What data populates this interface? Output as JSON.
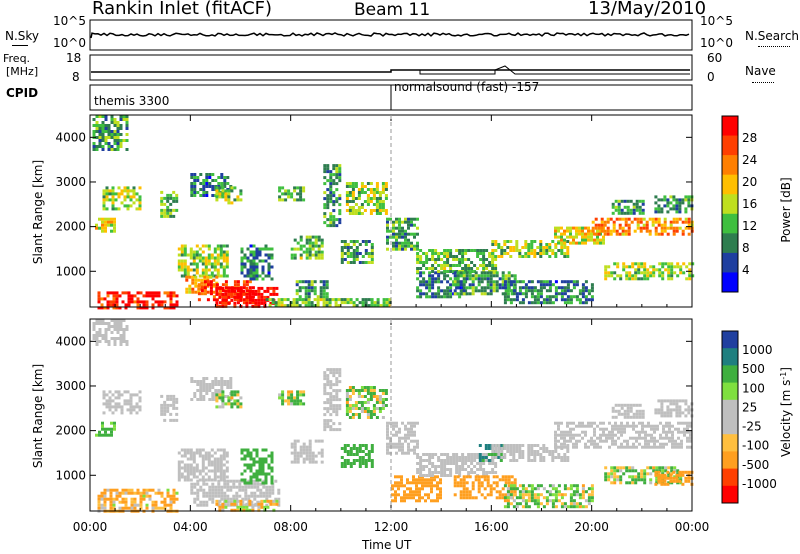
{
  "header": {
    "station": "Rankin Inlet (fitACF)",
    "beam": "Beam 11",
    "date": "13/May/2010"
  },
  "summary": {
    "nsky_label": "N.Sky",
    "nsky_tick_top": "10^5",
    "nsky_tick_bottom": "10^0",
    "nsearch_label": "N.Search",
    "nsearch_tick_top": "10^5",
    "nsearch_tick_bottom": "10^0",
    "freq_label_1": "Freq.",
    "freq_label_2": "[MHz]",
    "freq_tick_top": "18",
    "freq_tick_bottom": "8",
    "nave_label": "Nave",
    "nave_tick_top": "60",
    "nave_tick_bottom": "0",
    "cpid_label": "CPID",
    "programs": [
      {
        "name": "themis 3300",
        "start_hour": 0.0
      },
      {
        "name": "normalsound (fast) -157",
        "start_hour": 12.0
      }
    ]
  },
  "colors": {
    "power_scale": [
      "#0000ff",
      "#1f3f9f",
      "#2e7d4f",
      "#3fbf3f",
      "#bfdf1f",
      "#ffbf00",
      "#ff7f00",
      "#ff3f00",
      "#ff0000"
    ],
    "velocity_scale": [
      "#ff0000",
      "#ff4000",
      "#ff9f1f",
      "#ffbf3f",
      "#bfbfbf",
      "#bfbfbf",
      "#7fdf3f",
      "#3faf3f",
      "#1f7f7f",
      "#1f3f9f"
    ]
  },
  "chart_data": [
    {
      "type": "heatmap",
      "panel": "power",
      "xlabel": "",
      "ylabel": "Slant Range [km]",
      "x_unit": "hour UT",
      "xlim": [
        0,
        24
      ],
      "ylim": [
        200,
        4500
      ],
      "yticks": [
        1000,
        2000,
        3000,
        4000
      ],
      "xtick_labels": [
        "00:00",
        "04:00",
        "08:00",
        "12:00",
        "16:00",
        "20:00",
        "00:00"
      ],
      "colorbar": {
        "label": "Power [dB]",
        "ticks": [
          "4",
          "8",
          "12",
          "16",
          "20",
          "24",
          "28"
        ],
        "range": [
          0,
          30
        ]
      },
      "series": [
        {
          "t0": 0.1,
          "t1": 1.5,
          "r0": 3700,
          "r1": 4500,
          "value": 10
        },
        {
          "t0": 0.2,
          "t1": 1.0,
          "r0": 1900,
          "r1": 2200,
          "value": 16
        },
        {
          "t0": 0.3,
          "t1": 3.5,
          "r0": 200,
          "r1": 550,
          "value": 27
        },
        {
          "t0": 0.5,
          "t1": 2.0,
          "r0": 2400,
          "r1": 2900,
          "value": 14
        },
        {
          "t0": 2.8,
          "t1": 3.5,
          "r0": 2200,
          "r1": 2800,
          "value": 12
        },
        {
          "t0": 3.5,
          "t1": 5.5,
          "r0": 900,
          "r1": 1600,
          "value": 14
        },
        {
          "t0": 3.8,
          "t1": 5.0,
          "r0": 500,
          "r1": 900,
          "value": 20
        },
        {
          "t0": 4.0,
          "t1": 5.6,
          "r0": 2700,
          "r1": 3200,
          "value": 8
        },
        {
          "t0": 4.3,
          "t1": 6.5,
          "r0": 300,
          "r1": 800,
          "value": 25
        },
        {
          "t0": 5.0,
          "t1": 7.5,
          "r0": 200,
          "r1": 650,
          "value": 29
        },
        {
          "t0": 5.0,
          "t1": 6.0,
          "r0": 2500,
          "r1": 2900,
          "value": 14
        },
        {
          "t0": 6.0,
          "t1": 7.2,
          "r0": 800,
          "r1": 1600,
          "value": 8
        },
        {
          "t0": 7.5,
          "t1": 8.5,
          "r0": 2600,
          "r1": 2900,
          "value": 12
        },
        {
          "t0": 7.0,
          "t1": 12.0,
          "r0": 200,
          "r1": 400,
          "value": 12
        },
        {
          "t0": 8.0,
          "t1": 9.2,
          "r0": 1300,
          "r1": 1800,
          "value": 12
        },
        {
          "t0": 8.2,
          "t1": 9.5,
          "r0": 400,
          "r1": 800,
          "value": 10
        },
        {
          "t0": 9.3,
          "t1": 10.0,
          "r0": 2000,
          "r1": 3400,
          "value": 10
        },
        {
          "t0": 10.0,
          "t1": 11.3,
          "r0": 1200,
          "r1": 1700,
          "value": 10
        },
        {
          "t0": 10.2,
          "t1": 11.8,
          "r0": 2300,
          "r1": 3000,
          "value": 14
        },
        {
          "t0": 11.8,
          "t1": 13.0,
          "r0": 1500,
          "r1": 2200,
          "value": 10
        },
        {
          "t0": 13.0,
          "t1": 15.0,
          "r0": 400,
          "r1": 1000,
          "value": 8
        },
        {
          "t0": 13.0,
          "t1": 16.2,
          "r0": 1000,
          "r1": 1500,
          "value": 12
        },
        {
          "t0": 14.5,
          "t1": 17.0,
          "r0": 500,
          "r1": 1000,
          "value": 10
        },
        {
          "t0": 16.0,
          "t1": 19.0,
          "r0": 1300,
          "r1": 1700,
          "value": 14
        },
        {
          "t0": 16.5,
          "t1": 20.0,
          "r0": 300,
          "r1": 800,
          "value": 8
        },
        {
          "t0": 18.5,
          "t1": 20.5,
          "r0": 1600,
          "r1": 2000,
          "value": 16
        },
        {
          "t0": 20.0,
          "t1": 24.0,
          "r0": 1800,
          "r1": 2200,
          "value": 21
        },
        {
          "t0": 20.5,
          "t1": 24.0,
          "r0": 800,
          "r1": 1200,
          "value": 14
        },
        {
          "t0": 20.8,
          "t1": 22.0,
          "r0": 2300,
          "r1": 2600,
          "value": 10
        },
        {
          "t0": 22.5,
          "t1": 24.0,
          "r0": 2300,
          "r1": 2700,
          "value": 10
        }
      ]
    },
    {
      "type": "heatmap",
      "panel": "velocity",
      "xlabel": "Time UT",
      "ylabel": "Slant Range [km]",
      "x_unit": "hour UT",
      "xlim": [
        0,
        24
      ],
      "ylim": [
        200,
        4500
      ],
      "yticks": [
        1000,
        2000,
        3000,
        4000
      ],
      "xtick_labels": [
        "00:00",
        "04:00",
        "08:00",
        "12:00",
        "16:00",
        "20:00",
        "00:00"
      ],
      "colorbar": {
        "label": "Velocity [m s^-1]",
        "ticks": [
          "1000",
          "500",
          "100",
          "25",
          "-25",
          "-100",
          "-500",
          "-1000"
        ]
      },
      "series": [
        {
          "t0": 0.1,
          "t1": 1.5,
          "r0": 3900,
          "r1": 4500,
          "value": 0
        },
        {
          "t0": 0.2,
          "t1": 1.0,
          "r0": 1900,
          "r1": 2200,
          "value": 250
        },
        {
          "t0": 0.3,
          "t1": 3.5,
          "r0": 200,
          "r1": 700,
          "value": -150
        },
        {
          "t0": 0.5,
          "t1": 2.0,
          "r0": 2400,
          "r1": 2900,
          "value": 0
        },
        {
          "t0": 2.8,
          "t1": 3.5,
          "r0": 2200,
          "r1": 2800,
          "value": 0
        },
        {
          "t0": 3.5,
          "t1": 5.5,
          "r0": 900,
          "r1": 1600,
          "value": 0
        },
        {
          "t0": 4.0,
          "t1": 7.5,
          "r0": 300,
          "r1": 900,
          "value": 0
        },
        {
          "t0": 5.0,
          "t1": 7.5,
          "r0": 200,
          "r1": 450,
          "value": -100
        },
        {
          "t0": 4.0,
          "t1": 5.6,
          "r0": 2700,
          "r1": 3200,
          "value": 0
        },
        {
          "t0": 5.0,
          "t1": 6.0,
          "r0": 2500,
          "r1": 2900,
          "value": 80
        },
        {
          "t0": 6.0,
          "t1": 7.2,
          "r0": 800,
          "r1": 1600,
          "value": 300
        },
        {
          "t0": 7.5,
          "t1": 8.5,
          "r0": 2600,
          "r1": 2900,
          "value": 80
        },
        {
          "t0": 8.0,
          "t1": 9.2,
          "r0": 1300,
          "r1": 1800,
          "value": 0
        },
        {
          "t0": 9.3,
          "t1": 10.0,
          "r0": 2000,
          "r1": 3400,
          "value": 0
        },
        {
          "t0": 10.0,
          "t1": 11.3,
          "r0": 1200,
          "r1": 1700,
          "value": 300
        },
        {
          "t0": 10.2,
          "t1": 11.8,
          "r0": 2300,
          "r1": 3000,
          "value": 80
        },
        {
          "t0": 11.8,
          "t1": 13.0,
          "r0": 1500,
          "r1": 2200,
          "value": 0
        },
        {
          "t0": 12.0,
          "t1": 14.0,
          "r0": 400,
          "r1": 1000,
          "value": -300
        },
        {
          "t0": 13.0,
          "t1": 16.2,
          "r0": 1000,
          "r1": 1500,
          "value": 0
        },
        {
          "t0": 14.5,
          "t1": 17.0,
          "r0": 500,
          "r1": 1000,
          "value": -300
        },
        {
          "t0": 15.5,
          "t1": 16.5,
          "r0": 1300,
          "r1": 1700,
          "value": 600
        },
        {
          "t0": 16.0,
          "t1": 19.0,
          "r0": 1300,
          "r1": 1700,
          "value": 0
        },
        {
          "t0": 16.5,
          "t1": 20.0,
          "r0": 300,
          "r1": 800,
          "value": 80
        },
        {
          "t0": 18.5,
          "t1": 24.0,
          "r0": 1600,
          "r1": 2200,
          "value": 0
        },
        {
          "t0": 20.5,
          "t1": 23.5,
          "r0": 800,
          "r1": 1200,
          "value": 80
        },
        {
          "t0": 22.5,
          "t1": 24.0,
          "r0": 800,
          "r1": 1100,
          "value": -300
        },
        {
          "t0": 20.8,
          "t1": 22.0,
          "r0": 2300,
          "r1": 2600,
          "value": 0
        },
        {
          "t0": 22.5,
          "t1": 24.0,
          "r0": 2300,
          "r1": 2700,
          "value": 0
        }
      ]
    }
  ]
}
